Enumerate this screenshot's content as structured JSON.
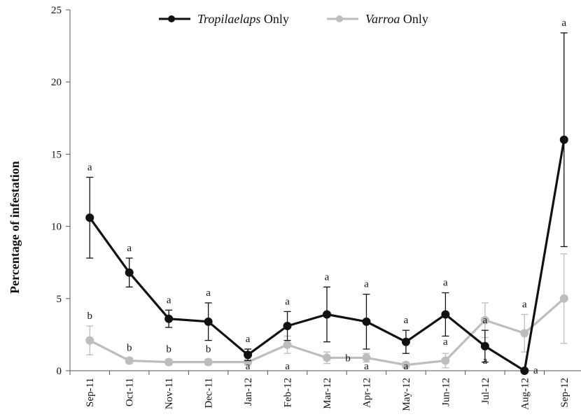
{
  "chart_data": {
    "type": "line",
    "title": "",
    "xlabel": "",
    "ylabel": "Percentage  of infestation",
    "ylim": [
      0,
      25
    ],
    "yticks": [
      "0",
      "5",
      "10",
      "15",
      "20",
      "25"
    ],
    "grid": false,
    "legend_position": "top-center",
    "categories": [
      "Sep-11",
      "Oct-11",
      "Nov-11",
      "Dec-11",
      "Jan-12",
      "Feb-12",
      "Mar-12",
      "Apr-12",
      "May-12",
      "Jun-12",
      "Jul-12",
      "Aug-12",
      "Sep-12"
    ],
    "series": [
      {
        "name_italic": "Tropilaelaps",
        "name_suffix": " Only",
        "color": "#111111",
        "values": [
          10.6,
          6.8,
          3.6,
          3.4,
          1.1,
          3.1,
          3.9,
          3.4,
          2.0,
          3.9,
          1.7,
          0.0,
          16.0
        ],
        "error_upper": [
          13.4,
          7.8,
          4.2,
          4.7,
          1.5,
          4.1,
          5.8,
          5.3,
          2.8,
          5.4,
          2.8,
          0.0,
          23.4
        ],
        "error_lower": [
          7.8,
          5.8,
          3.0,
          2.1,
          0.7,
          2.1,
          2.0,
          1.5,
          1.2,
          2.4,
          0.6,
          0.0,
          8.6
        ],
        "significance": [
          "a",
          "a",
          "a",
          "a",
          "a",
          "a",
          "a",
          "a",
          "a",
          "a",
          "a",
          "a",
          "a"
        ]
      },
      {
        "name_italic": "Varroa",
        "name_suffix": " Only",
        "color": "#bdbdbd",
        "values": [
          2.1,
          0.7,
          0.6,
          0.6,
          0.6,
          1.8,
          0.9,
          0.9,
          0.4,
          0.7,
          3.5,
          2.6,
          5.0
        ],
        "error_upper": [
          3.1,
          0.9,
          0.8,
          0.8,
          0.8,
          2.4,
          1.3,
          1.2,
          0.6,
          1.2,
          4.7,
          3.9,
          8.1
        ],
        "error_lower": [
          1.1,
          0.5,
          0.4,
          0.4,
          0.4,
          1.2,
          0.5,
          0.6,
          0.2,
          0.2,
          2.3,
          1.3,
          1.9
        ],
        "significance": [
          "b",
          "b",
          "b",
          "b",
          "a",
          "a",
          "b",
          "a",
          "a",
          "a",
          "a",
          "a",
          "b"
        ]
      }
    ]
  }
}
